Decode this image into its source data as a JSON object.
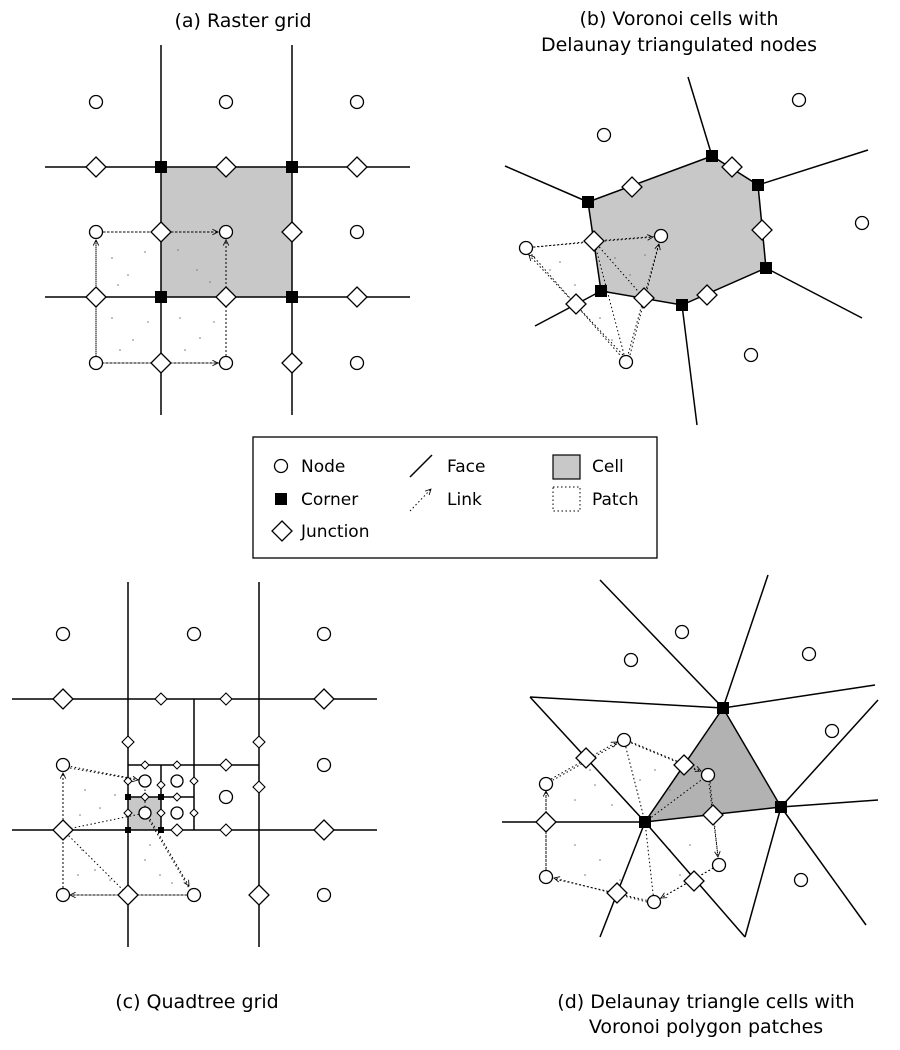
{
  "figure": {
    "panels": {
      "a": {
        "title": "(a) Raster grid"
      },
      "b": {
        "title_lines": [
          "(b) Voronoi cells with",
          "Delaunay triangulated nodes"
        ]
      },
      "c": {
        "title": "(c) Quadtree grid"
      },
      "d": {
        "title_lines": [
          "(d) Delaunay triangle cells with",
          "Voronoi polygon patches"
        ]
      }
    },
    "legend": {
      "node": "Node",
      "corner": "Corner",
      "junction": "Junction",
      "face": "Face",
      "link": "Link",
      "cell": "Cell",
      "patch": "Patch"
    },
    "colors": {
      "cell_fill": "#c8c8c8",
      "cell_fill_d": "#b2b2b2",
      "corner": "#000000",
      "line": "#000000"
    }
  }
}
